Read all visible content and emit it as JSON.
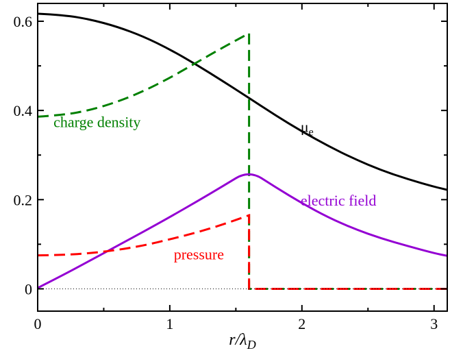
{
  "chart_data": {
    "type": "line",
    "xlabel": "r/λD",
    "xlabel_parts": {
      "main": "r/λ",
      "sub": "D"
    },
    "xlim": [
      0,
      3.1
    ],
    "ylim": [
      -0.05,
      0.64
    ],
    "xticks": [
      {
        "value": 0,
        "label": "0"
      },
      {
        "value": 1,
        "label": "1"
      },
      {
        "value": 2,
        "label": "2"
      },
      {
        "value": 3,
        "label": "3"
      }
    ],
    "yticks": [
      {
        "value": 0,
        "label": "0"
      },
      {
        "value": 0.2,
        "label": "0.2"
      },
      {
        "value": 0.4,
        "label": "0.4"
      },
      {
        "value": 0.6,
        "label": "0.6"
      }
    ],
    "zero_line": {
      "style": "dotted",
      "color": "#000000"
    },
    "series": [
      {
        "name": "μe",
        "label_parts": {
          "main": "μ",
          "sub": "e"
        },
        "color": "#000000",
        "dash": "solid",
        "points": [
          [
            0,
            0.617
          ],
          [
            0.2,
            0.614
          ],
          [
            0.4,
            0.604
          ],
          [
            0.6,
            0.588
          ],
          [
            0.8,
            0.566
          ],
          [
            1.0,
            0.537
          ],
          [
            1.2,
            0.503
          ],
          [
            1.4,
            0.466
          ],
          [
            1.6,
            0.428
          ],
          [
            1.8,
            0.389
          ],
          [
            2.0,
            0.353
          ],
          [
            2.2,
            0.32
          ],
          [
            2.4,
            0.291
          ],
          [
            2.6,
            0.266
          ],
          [
            2.8,
            0.246
          ],
          [
            3.0,
            0.229
          ],
          [
            3.1,
            0.222
          ]
        ]
      },
      {
        "name": "charge density",
        "color": "#008000",
        "dash": "dashed",
        "points": [
          [
            0,
            0.386
          ],
          [
            0.2,
            0.39
          ],
          [
            0.4,
            0.401
          ],
          [
            0.6,
            0.419
          ],
          [
            0.8,
            0.443
          ],
          [
            1.0,
            0.473
          ],
          [
            1.2,
            0.507
          ],
          [
            1.4,
            0.541
          ],
          [
            1.6,
            0.573
          ],
          [
            1.6,
            0
          ],
          [
            3.1,
            0
          ]
        ]
      },
      {
        "name": "electric field",
        "color": "#9400d3",
        "dash": "solid",
        "points": [
          [
            0,
            0.002
          ],
          [
            0.2,
            0.032
          ],
          [
            0.4,
            0.064
          ],
          [
            0.6,
            0.096
          ],
          [
            0.8,
            0.128
          ],
          [
            1.0,
            0.161
          ],
          [
            1.2,
            0.195
          ],
          [
            1.4,
            0.23
          ],
          [
            1.6,
            0.266
          ],
          [
            1.8,
            0.228
          ],
          [
            2.0,
            0.192
          ],
          [
            2.2,
            0.16
          ],
          [
            2.4,
            0.134
          ],
          [
            2.6,
            0.113
          ],
          [
            2.8,
            0.096
          ],
          [
            3.0,
            0.08
          ],
          [
            3.1,
            0.074
          ]
        ]
      },
      {
        "name": "pressure",
        "color": "#ff0000",
        "dash": "dashed",
        "points": [
          [
            0,
            0.075
          ],
          [
            0.2,
            0.076
          ],
          [
            0.4,
            0.08
          ],
          [
            0.6,
            0.087
          ],
          [
            0.8,
            0.097
          ],
          [
            1.0,
            0.111
          ],
          [
            1.2,
            0.126
          ],
          [
            1.4,
            0.144
          ],
          [
            1.6,
            0.165
          ],
          [
            1.6,
            0
          ],
          [
            3.1,
            0
          ]
        ]
      }
    ],
    "annotations": [
      {
        "series": "charge density",
        "text": "charge density",
        "x": 0.12,
        "y": 0.363,
        "color": "#008000"
      },
      {
        "series": "μe",
        "text": "μe",
        "x": 1.99,
        "y": 0.352,
        "color": "#000000"
      },
      {
        "series": "electric field",
        "text": "electric field",
        "x": 1.99,
        "y": 0.187,
        "color": "#9400d3"
      },
      {
        "series": "pressure",
        "text": "pressure",
        "x": 1.03,
        "y": 0.066,
        "color": "#ff0000"
      }
    ],
    "legend": "none",
    "grid": false
  }
}
